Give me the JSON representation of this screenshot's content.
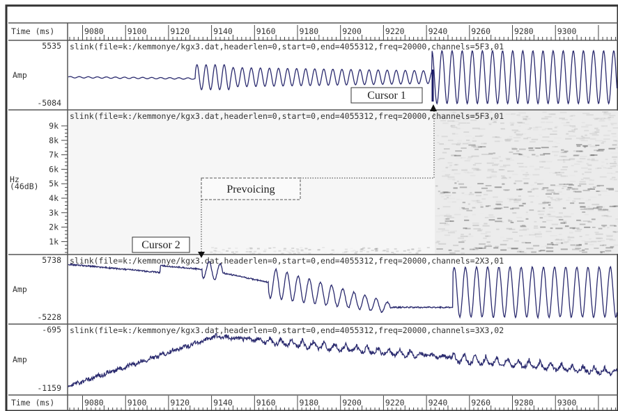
{
  "time_axis": {
    "label": "Time (ms)",
    "ticks": [
      "9080",
      "9100",
      "9120",
      "9140",
      "9160",
      "9180",
      "9200",
      "9220",
      "9240",
      "9260",
      "9280",
      "9300"
    ]
  },
  "panels": [
    {
      "header": "slink(file=k:/kemmonye/kgx3.dat,headerlen=0,start=0,end=4055312,freq=20000,channels=5F3,01",
      "top": "5535",
      "unit": "Amp",
      "bottom": "-5084"
    },
    {
      "header": "slink(file=k:/kemmonye/kgx3.dat,headerlen=0,start=0,end=4055312,freq=20000,channels=5F3,01",
      "unit": "Hz\n(46dB)",
      "ticks": [
        "9k",
        "8k",
        "7k",
        "6k",
        "5k",
        "4k",
        "3k",
        "2k",
        "1k"
      ]
    },
    {
      "header": "slink(file=k:/kemmonye/kgx3.dat,headerlen=0,start=0,end=4055312,freq=20000,channels=2X3,01",
      "top": "5738",
      "unit": "Amp",
      "bottom": "-5228"
    },
    {
      "header": "slink(file=k:/kemmonye/kgx3.dat,headerlen=0,start=0,end=4055312,freq=20000,channels=3X3,02",
      "top": "-695",
      "unit": "Amp",
      "bottom": "-1159"
    }
  ],
  "annotations": {
    "cursor1": "Cursor 1",
    "cursor2": "Cursor 2",
    "prevoicing": "Prevoicing"
  }
}
